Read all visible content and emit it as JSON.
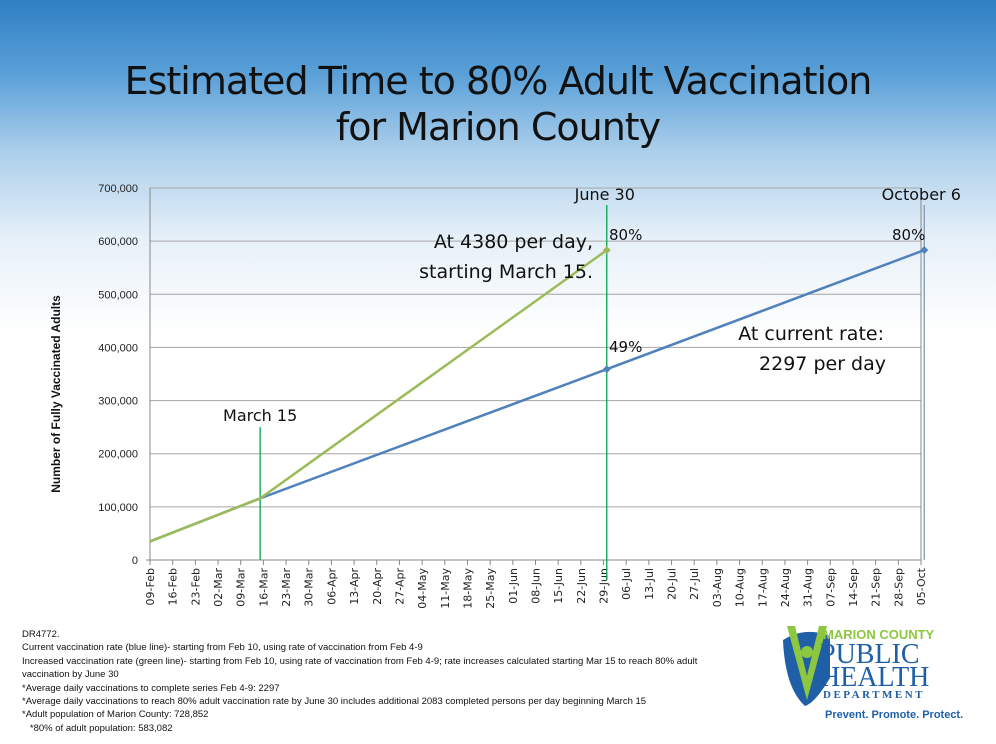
{
  "title_line1": "Estimated Time to 80% Adult Vaccination",
  "title_line2": "for Marion County",
  "chart_data": {
    "type": "line",
    "ylabel": "Number of Fully Vaccinated Adults",
    "xlabel": "",
    "ylim": [
      0,
      700000
    ],
    "yticks": [
      0,
      100000,
      200000,
      300000,
      400000,
      500000,
      600000,
      700000
    ],
    "ytick_labels": [
      "0",
      "100,000",
      "200,000",
      "300,000",
      "400,000",
      "500,000",
      "600,000",
      "700,000"
    ],
    "xlim": [
      "2021-02-09",
      "2021-10-05"
    ],
    "xtick_labels": [
      "09-Feb",
      "16-Feb",
      "23-Feb",
      "02-Mar",
      "09-Mar",
      "16-Mar",
      "23-Mar",
      "30-Mar",
      "06-Apr",
      "13-Apr",
      "20-Apr",
      "27-Apr",
      "04-May",
      "11-May",
      "18-May",
      "25-May",
      "01-Jun",
      "08-Jun",
      "15-Jun",
      "22-Jun",
      "29-Jun",
      "06-Jul",
      "13-Jul",
      "20-Jul",
      "27-Jul",
      "03-Aug",
      "10-Aug",
      "17-Aug",
      "24-Aug",
      "31-Aug",
      "07-Sep",
      "14-Sep",
      "21-Sep",
      "28-Sep",
      "05-Oct"
    ],
    "grid": true,
    "series": [
      {
        "color": "#4f81bd",
        "points": [
          [
            "2021-02-09",
            35000
          ],
          [
            "2021-03-15",
            116000
          ],
          [
            "2021-06-30",
            359000
          ],
          [
            "2021-10-06",
            583082
          ]
        ],
        "markers": [
          [
            "2021-06-30",
            359000
          ],
          [
            "2021-10-06",
            583082
          ]
        ]
      },
      {
        "color": "#9bbb59",
        "points": [
          [
            "2021-02-09",
            35000
          ],
          [
            "2021-03-15",
            116000
          ],
          [
            "2021-06-30",
            583082
          ]
        ],
        "markers": [
          [
            "2021-06-30",
            583082
          ]
        ]
      }
    ],
    "vlines": [
      {
        "date": "2021-03-15",
        "label": "March 15",
        "color": "#00a650"
      },
      {
        "date": "2021-06-30",
        "label": "June 30",
        "color": "#00a650"
      },
      {
        "date": "2021-10-06",
        "label": "October 6",
        "color": "#8497b0"
      }
    ],
    "annotations": {
      "green_rate_1": "At 4380 per day,",
      "green_rate_2": "starting March 15.",
      "blue_rate_1": "At current rate:",
      "blue_rate_2": "2297 per day",
      "green_pct": "80%",
      "blue_june_pct": "49%",
      "blue_oct_pct": "80%"
    }
  },
  "notes": [
    "DR4772.",
    "Current vaccination rate (blue line)- starting from Feb 10, using rate of vaccination from Feb 4-9",
    "Increased vaccination rate (green line)- starting from Feb 10, using rate of vaccination from Feb 4-9; rate increases calculated starting Mar 15 to reach 80% adult",
    "vaccination by June 30",
    "*Average daily vaccinations to complete series Feb 4-9: 2297",
    "*Average daily vaccinations to reach 80% adult vaccination rate by June 30 includes additional 2083 completed persons per day beginning March 15",
    "*Adult population of Marion County: 728,852",
    "   *80% of adult population: 583,082"
  ],
  "logo": {
    "line1": "MARION COUNTY",
    "line2": "PUBLIC",
    "line3": "HEALTH",
    "line4": "DEPARTMENT",
    "tagline": "Prevent. Promote. Protect.",
    "green": "#8dc63f",
    "blue": "#1f5fa8"
  }
}
